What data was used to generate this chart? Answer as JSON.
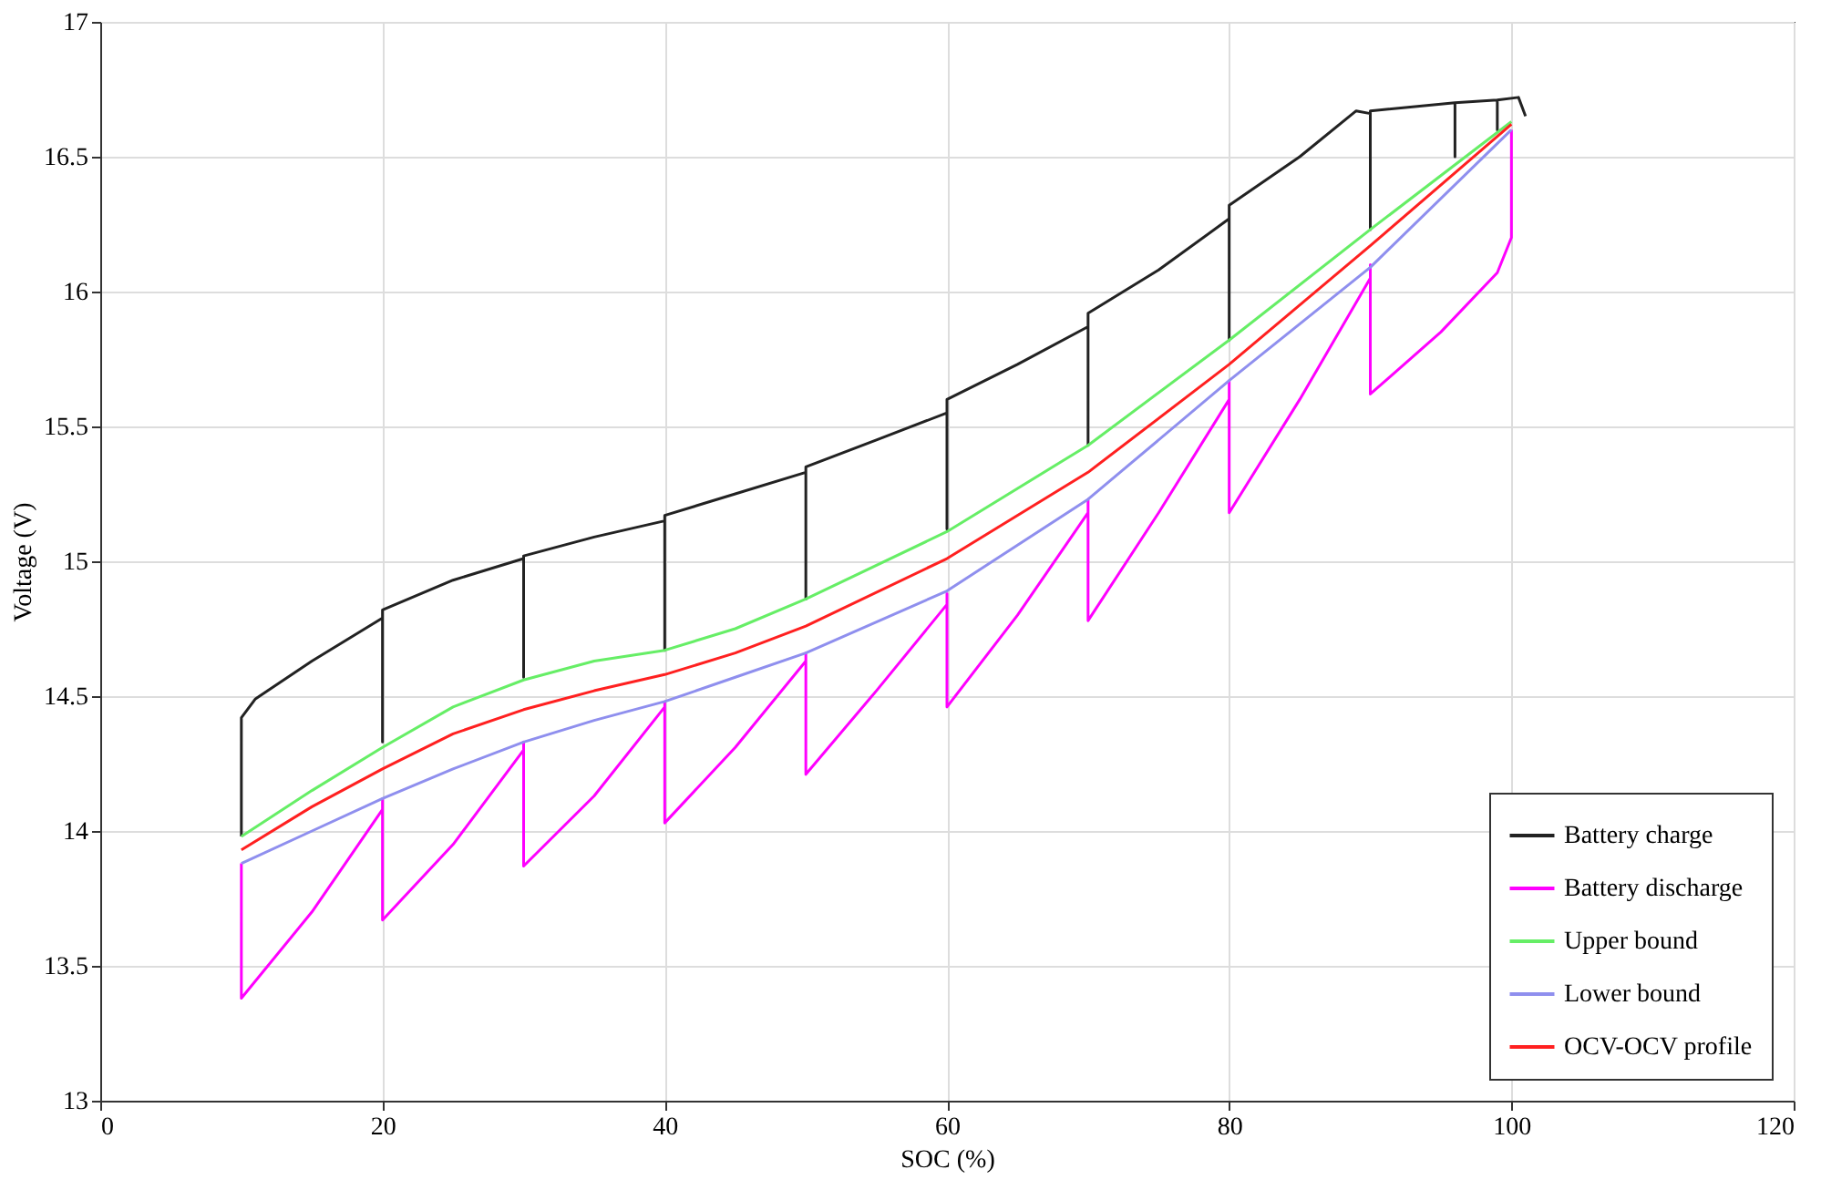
{
  "chart_data": {
    "type": "line",
    "xlabel": "SOC (%)",
    "ylabel": "Voltage (V)",
    "xlim": [
      0,
      120
    ],
    "xticks": [
      0,
      20,
      40,
      60,
      80,
      100,
      120
    ],
    "ylim": [
      13,
      17
    ],
    "yticks": [
      13,
      13.5,
      14,
      14.5,
      15,
      15.5,
      16,
      16.5,
      17
    ],
    "grid": true,
    "legend": "bottom right",
    "marker": "none",
    "line_style": "solid",
    "series": [
      {
        "name": "Battery charge",
        "color": "#222222",
        "x": [
          10,
          10,
          11,
          15,
          20,
          20,
          20,
          25,
          30,
          30,
          30,
          35,
          40,
          40,
          40,
          45,
          50,
          50,
          50,
          55,
          60,
          60,
          60,
          65,
          70,
          70,
          70,
          75,
          80,
          80,
          80,
          85,
          89,
          90,
          90,
          90,
          96,
          96,
          96,
          99,
          99,
          99,
          100.5,
          101
        ],
        "values": [
          13.98,
          14.42,
          14.49,
          14.63,
          14.79,
          14.33,
          14.82,
          14.93,
          15.01,
          14.57,
          15.02,
          15.09,
          15.15,
          14.67,
          15.17,
          15.25,
          15.33,
          14.86,
          15.35,
          15.45,
          15.55,
          15.12,
          15.6,
          15.73,
          15.87,
          15.43,
          15.92,
          16.08,
          16.27,
          15.82,
          16.32,
          16.5,
          16.67,
          16.66,
          16.23,
          16.67,
          16.7,
          16.5,
          16.7,
          16.71,
          16.6,
          16.71,
          16.72,
          16.65
        ]
      },
      {
        "name": "Battery discharge",
        "color": "#ff00ff",
        "x": [
          100,
          100,
          99,
          95,
          90,
          90,
          90,
          85,
          80,
          80,
          80,
          75,
          70,
          70,
          70,
          65,
          60,
          60,
          60,
          55,
          50,
          50,
          50,
          45,
          40,
          40,
          40,
          35,
          30,
          30,
          30,
          25,
          20,
          20,
          20,
          15,
          10,
          10
        ],
        "values": [
          16.6,
          16.2,
          16.07,
          15.85,
          15.62,
          16.1,
          16.05,
          15.6,
          15.18,
          15.67,
          15.6,
          15.18,
          14.78,
          15.23,
          15.18,
          14.8,
          14.46,
          14.88,
          14.84,
          14.52,
          14.21,
          14.66,
          14.63,
          14.31,
          14.03,
          14.48,
          14.46,
          14.13,
          13.87,
          14.33,
          14.3,
          13.95,
          13.67,
          14.12,
          14.08,
          13.7,
          13.38,
          13.88
        ]
      },
      {
        "name": "Upper bound",
        "color": "#66ee66",
        "x": [
          10,
          15,
          20,
          25,
          30,
          35,
          40,
          45,
          50,
          60,
          70,
          80,
          90,
          100
        ],
        "values": [
          13.98,
          14.15,
          14.31,
          14.46,
          14.56,
          14.63,
          14.67,
          14.75,
          14.86,
          15.11,
          15.43,
          15.82,
          16.23,
          16.63
        ]
      },
      {
        "name": "Lower bound",
        "color": "#8f8fee",
        "x": [
          10,
          15,
          20,
          25,
          30,
          35,
          40,
          45,
          50,
          60,
          70,
          80,
          90,
          100
        ],
        "values": [
          13.88,
          14.0,
          14.12,
          14.23,
          14.33,
          14.41,
          14.48,
          14.57,
          14.66,
          14.89,
          15.23,
          15.67,
          16.09,
          16.6
        ]
      },
      {
        "name": " OCV-OCV profile",
        "color": "#ff2020",
        "x": [
          10,
          15,
          20,
          25,
          30,
          35,
          40,
          45,
          50,
          60,
          70,
          80,
          90,
          100
        ],
        "values": [
          13.93,
          14.09,
          14.23,
          14.36,
          14.45,
          14.52,
          14.58,
          14.66,
          14.76,
          15.01,
          15.33,
          15.73,
          16.17,
          16.62
        ]
      }
    ]
  }
}
